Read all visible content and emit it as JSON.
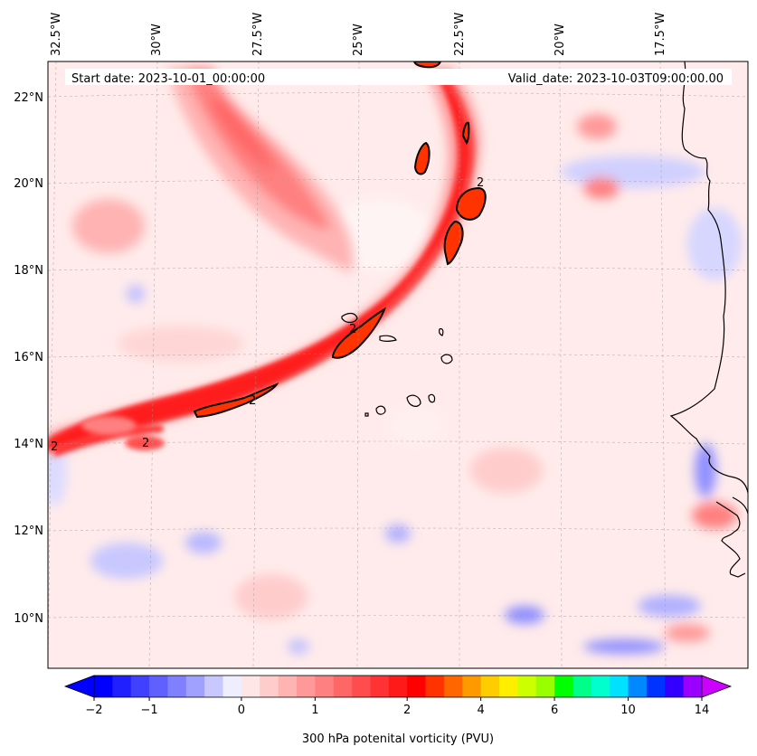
{
  "map": {
    "start_date": "Start date: 2023-10-01_00:00:00",
    "valid_date": "Valid_date: 2023-10-03T09:00:00.00",
    "lon_labels": [
      "32.5°W",
      "30°W",
      "27.5°W",
      "25°W",
      "22.5°W",
      "20°W",
      "17.5°W"
    ],
    "lat_labels": [
      "22°N",
      "20°N",
      "18°N",
      "16°N",
      "14°N",
      "12°N",
      "10°N"
    ],
    "contour_label": "2"
  },
  "colorbar": {
    "tick_labels": [
      "−2",
      "−1",
      "0",
      "1",
      "2",
      "4",
      "6",
      "10",
      "14"
    ],
    "label": "300 hPa potenital vorticity (PVU)",
    "colors": [
      "#0000ff",
      "#2020ff",
      "#4040ff",
      "#6060ff",
      "#8080ff",
      "#a0a0ff",
      "#c8c8ff",
      "#eeeeff",
      "#ffe6e6",
      "#ffcccc",
      "#ffb3b3",
      "#ff9999",
      "#ff8080",
      "#ff6666",
      "#ff4d4d",
      "#ff3333",
      "#ff1a1a",
      "#ff0000",
      "#ff3300",
      "#ff6600",
      "#ff9900",
      "#ffcc00",
      "#ffee00",
      "#ccff00",
      "#99ff00",
      "#00ff00",
      "#00ff88",
      "#00ffcc",
      "#00e0ff",
      "#0088ff",
      "#0033ff",
      "#3300ff",
      "#9900ff"
    ],
    "extend_low_color": "#0000ff",
    "extend_high_color": "#cc00ff"
  }
}
